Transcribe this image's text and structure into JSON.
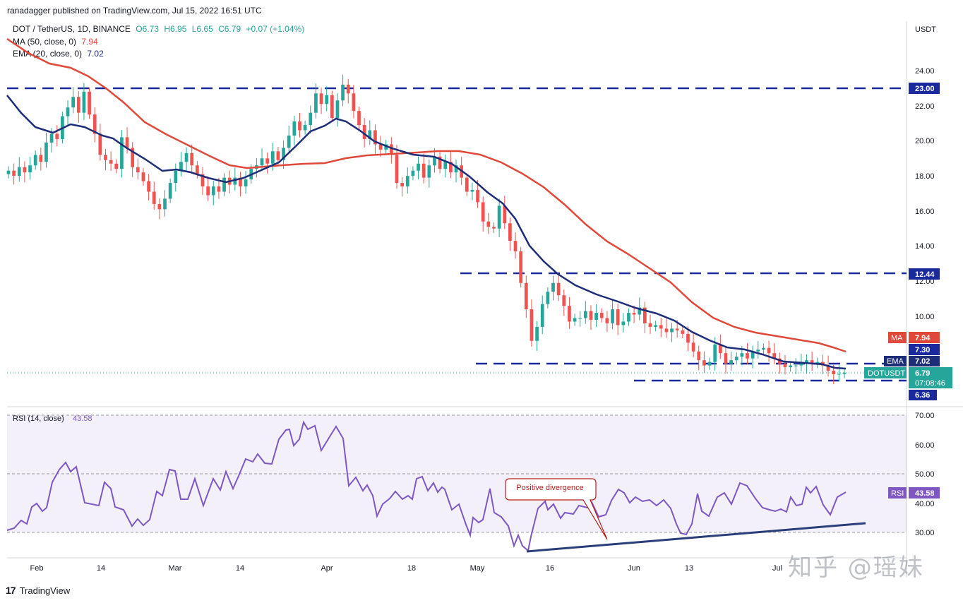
{
  "header": {
    "publisher": "ranadagger published on TradingView.com, Jul 15, 2022 16:51 UTC"
  },
  "legend": {
    "symbol": "DOT / TetherUS, 1D, BINANCE",
    "open": "O6.73",
    "high": "H6.95",
    "low": "L6.65",
    "close": "C6.79",
    "change": "+0.07 (+1.04%)",
    "ma_label": "MA (50, close, 0)",
    "ma_value": "7.94",
    "ema_label": "EMA (20, close, 0)",
    "ema_value": "7.02",
    "rsi_label": "RSI (14, close)",
    "rsi_value": "43.58"
  },
  "colors": {
    "up": "#26a69a",
    "down": "#ef5350",
    "ma": "#e0493a",
    "ema": "#1e2d78",
    "rsi": "#7e57c2",
    "level": "#1a2a9c"
  },
  "axis": {
    "currency": "USDT",
    "price_ticks": [
      "24.00",
      "22.00",
      "20.00",
      "18.00",
      "16.00",
      "14.00",
      "12.00",
      "10.00"
    ],
    "rsi_ticks": [
      "70.00",
      "60.00",
      "50.00",
      "40.00",
      "30.00"
    ],
    "time_ticks": [
      "Feb",
      "14",
      "Mar",
      "14",
      "Apr",
      "18",
      "May",
      "16",
      "Jun",
      "13",
      "Jul"
    ]
  },
  "badges": {
    "level_23": "23.00",
    "level_1244": "12.44",
    "ma_tag": "MA",
    "ma_val": "7.94",
    "level_730": "7.30",
    "ema_tag": "EMA",
    "ema_val": "7.02",
    "sym_tag": "DOTUSDT",
    "last": "6.79",
    "countdown": "07:08:46",
    "level_636": "6.36",
    "rsi_tag": "RSI",
    "rsi_val": "43.58"
  },
  "annotation": {
    "text": "Positive divergence"
  },
  "footer": {
    "brand": "TradingView"
  },
  "watermark": "知乎 @瑶妹",
  "chart_data": {
    "type": "candlestick",
    "price_axis_range": [
      6.0,
      25.0
    ],
    "rsi_axis_range": [
      24,
      71
    ],
    "horizontal_levels": [
      23.0,
      12.44,
      7.3,
      6.36
    ],
    "candles_close": [
      18.3,
      18.0,
      18.5,
      18.2,
      18.6,
      19.2,
      18.8,
      19.9,
      20.4,
      20.1,
      21.4,
      21.9,
      22.5,
      21.6,
      22.8,
      21.5,
      20.4,
      19.2,
      18.9,
      18.7,
      18.4,
      20.2,
      19.6,
      18.5,
      18.2,
      17.7,
      17.1,
      16.4,
      16.1,
      16.7,
      17.6,
      18.3,
      18.8,
      19.3,
      18.6,
      18.1,
      17.4,
      16.9,
      17.4,
      17.1,
      17.9,
      17.5,
      17.9,
      17.4,
      17.8,
      18.4,
      18.6,
      19.0,
      18.7,
      19.4,
      18.9,
      19.6,
      20.3,
      21.1,
      20.6,
      20.9,
      21.6,
      22.7,
      22.1,
      22.6,
      21.3,
      22.3,
      23.2,
      22.7,
      21.7,
      20.9,
      20.1,
      20.6,
      19.8,
      19.5,
      19.8,
      19.2,
      17.6,
      17.4,
      18.0,
      18.3,
      18.7,
      17.9,
      18.6,
      19.1,
      18.4,
      18.8,
      18.2,
      18.6,
      17.9,
      17.1,
      17.2,
      16.5,
      15.4,
      15.1,
      15.0,
      16.3,
      15.3,
      14.3,
      13.7,
      11.9,
      10.4,
      8.6,
      9.4,
      10.7,
      11.4,
      11.9,
      11.2,
      10.6,
      9.7,
      9.9,
      9.9,
      10.3,
      9.8,
      10.2,
      9.9,
      9.6,
      10.4,
      9.5,
      9.7,
      10.2,
      10.1,
      10.5,
      9.6,
      9.4,
      9.5,
      9.3,
      9.1,
      9.3,
      9.2,
      9.0,
      8.5,
      8.0,
      7.5,
      7.2,
      7.4,
      8.4,
      7.9,
      7.3,
      7.5,
      7.7,
      7.9,
      7.6,
      8.0,
      8.1,
      8.2,
      7.9,
      7.6,
      7.3,
      7.1,
      7.2,
      7.2,
      7.3,
      7.5,
      7.3,
      7.4,
      7.2,
      6.9,
      6.7,
      6.72,
      6.79
    ],
    "ma50_current": 7.94,
    "ema20_current": 7.02,
    "rsi_current": 43.58,
    "rsi_levels": [
      70,
      50,
      30
    ],
    "annotations": [
      "Positive divergence"
    ]
  }
}
